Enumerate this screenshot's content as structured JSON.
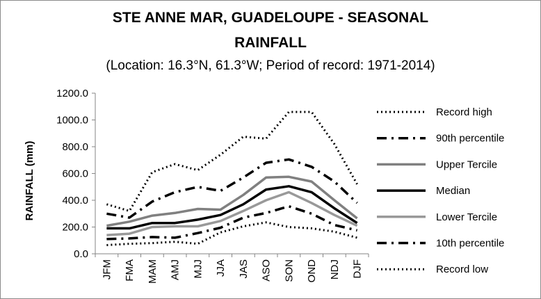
{
  "chart_data": {
    "type": "line",
    "title_line1": "STE ANNE MAR, GUADELOUPE - SEASONAL",
    "title_line2": "RAINFALL",
    "subtitle": "(Location: 16.3°N, 61.3°W; Period of record: 1971-2014)",
    "ylabel": "RAINFALL (mm)",
    "xlabel": "",
    "ylim": [
      0,
      1200
    ],
    "yticks": [
      "0.0",
      "200.0",
      "400.0",
      "600.0",
      "800.0",
      "1000.0",
      "1200.0"
    ],
    "grid": false,
    "legend_position": "right",
    "categories": [
      "JFM",
      "FMA",
      "MAM",
      "AMJ",
      "MJJ",
      "JJA",
      "JAS",
      "ASO",
      "SON",
      "OND",
      "NDJ",
      "DJF"
    ],
    "series": [
      {
        "name": "Record high",
        "style": "dotted",
        "color": "#000000",
        "values": [
          370,
          320,
          610,
          670,
          625,
          740,
          875,
          860,
          1060,
          1060,
          820,
          520
        ]
      },
      {
        "name": "90th percentile",
        "style": "dashdot",
        "color": "#000000",
        "values": [
          300,
          270,
          390,
          460,
          500,
          470,
          570,
          680,
          705,
          650,
          540,
          380
        ]
      },
      {
        "name": "Upper Tercile",
        "style": "solid-gray",
        "color": "#808080",
        "values": [
          210,
          240,
          285,
          305,
          335,
          330,
          440,
          570,
          575,
          540,
          400,
          265
        ]
      },
      {
        "name": "Median",
        "style": "solid",
        "color": "#000000",
        "values": [
          190,
          190,
          230,
          230,
          255,
          290,
          370,
          480,
          505,
          460,
          340,
          230
        ]
      },
      {
        "name": "Lower Tercile",
        "style": "solid-gray",
        "color": "#999999",
        "values": [
          140,
          150,
          200,
          205,
          205,
          245,
          320,
          400,
          460,
          380,
          290,
          210
        ]
      },
      {
        "name": "10th percentile",
        "style": "dashdot",
        "color": "#000000",
        "values": [
          110,
          115,
          125,
          120,
          155,
          195,
          270,
          305,
          355,
          300,
          215,
          175
        ]
      },
      {
        "name": "Record low",
        "style": "dotted",
        "color": "#000000",
        "values": [
          65,
          75,
          80,
          90,
          75,
          160,
          205,
          235,
          200,
          190,
          165,
          120
        ]
      }
    ]
  }
}
